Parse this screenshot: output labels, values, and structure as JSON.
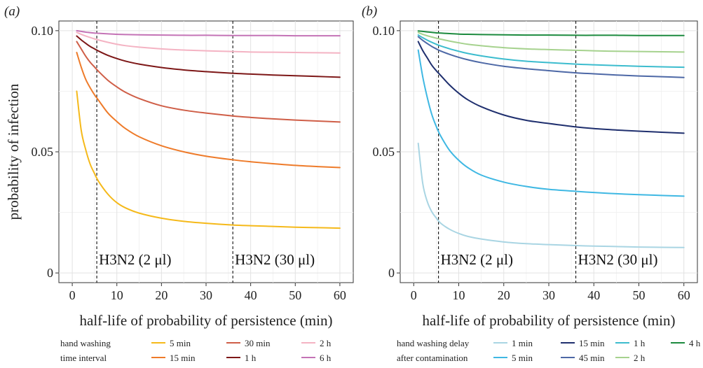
{
  "chart_data": [
    {
      "type": "line",
      "panel_label": "(a)",
      "xlabel": "half-life of probability of persistence (min)",
      "ylabel": "probability of infection",
      "xlim": [
        -3,
        63
      ],
      "ylim": [
        -0.004,
        0.104
      ],
      "xticks": [
        0,
        10,
        20,
        30,
        40,
        50,
        60
      ],
      "yticks": [
        0,
        0.05,
        0.1
      ],
      "ytick_labels": [
        "0",
        "0.05",
        "0.10"
      ],
      "grid": true,
      "vlines": [
        {
          "x": 5.5,
          "label": "H3N2 (2 μl)"
        },
        {
          "x": 36,
          "label": "H3N2 (30 μl)"
        }
      ],
      "legend": {
        "placement": "bottom",
        "title": [
          "hand washing",
          "time interval"
        ]
      },
      "series": [
        {
          "name": "5 min",
          "color": "#F5B91A",
          "x": [
            1,
            2,
            3,
            4,
            5,
            6,
            8,
            10,
            12,
            15,
            20,
            25,
            30,
            36,
            40,
            45,
            50,
            55,
            60
          ],
          "y": [
            0.075,
            0.059,
            0.051,
            0.045,
            0.041,
            0.0375,
            0.0325,
            0.029,
            0.0268,
            0.0247,
            0.0226,
            0.0213,
            0.0205,
            0.0198,
            0.0195,
            0.0192,
            0.0189,
            0.0187,
            0.0185
          ]
        },
        {
          "name": "15 min",
          "color": "#EE7B2A",
          "x": [
            1,
            2,
            3,
            4,
            5,
            6,
            8,
            10,
            12,
            15,
            20,
            25,
            30,
            36,
            40,
            45,
            50,
            55,
            60
          ],
          "y": [
            0.091,
            0.085,
            0.08,
            0.0765,
            0.0735,
            0.071,
            0.066,
            0.0625,
            0.0595,
            0.0562,
            0.0525,
            0.05,
            0.0482,
            0.0467,
            0.0459,
            0.0451,
            0.0444,
            0.0439,
            0.0435
          ]
        },
        {
          "name": "30 min",
          "color": "#CF5E47",
          "x": [
            1,
            2,
            3,
            4,
            5,
            6,
            8,
            10,
            12,
            15,
            20,
            25,
            30,
            36,
            40,
            45,
            50,
            55,
            60
          ],
          "y": [
            0.0955,
            0.0925,
            0.0895,
            0.087,
            0.085,
            0.083,
            0.0795,
            0.0768,
            0.0745,
            0.072,
            0.069,
            0.0672,
            0.066,
            0.0648,
            0.0642,
            0.0636,
            0.0631,
            0.0627,
            0.0623
          ]
        },
        {
          "name": "1 h",
          "color": "#7D1717",
          "x": [
            1,
            2,
            3,
            4,
            5,
            6,
            8,
            10,
            12,
            15,
            20,
            25,
            30,
            36,
            40,
            45,
            50,
            55,
            60
          ],
          "y": [
            0.0978,
            0.0962,
            0.0948,
            0.0935,
            0.0925,
            0.0915,
            0.0898,
            0.0885,
            0.0874,
            0.0862,
            0.0848,
            0.0838,
            0.0831,
            0.0824,
            0.0821,
            0.0817,
            0.0814,
            0.0811,
            0.0808
          ]
        },
        {
          "name": "2 h",
          "color": "#F4B3C3",
          "x": [
            1,
            2,
            3,
            4,
            5,
            6,
            8,
            10,
            12,
            15,
            20,
            25,
            30,
            36,
            40,
            45,
            50,
            55,
            60
          ],
          "y": [
            0.0993,
            0.0985,
            0.0978,
            0.0972,
            0.0966,
            0.0961,
            0.0952,
            0.0944,
            0.0938,
            0.0932,
            0.0925,
            0.092,
            0.0917,
            0.0914,
            0.0912,
            0.0911,
            0.091,
            0.0909,
            0.0908
          ]
        },
        {
          "name": "6 h",
          "color": "#C473B6",
          "x": [
            1,
            2,
            3,
            4,
            5,
            6,
            8,
            10,
            12,
            15,
            20,
            25,
            30,
            36,
            40,
            45,
            50,
            55,
            60
          ],
          "y": [
            0.1,
            0.0997,
            0.0994,
            0.0992,
            0.099,
            0.0989,
            0.0987,
            0.0985,
            0.0984,
            0.0983,
            0.0982,
            0.0981,
            0.0981,
            0.098,
            0.098,
            0.098,
            0.0979,
            0.0979,
            0.0979
          ]
        }
      ]
    },
    {
      "type": "line",
      "panel_label": "(b)",
      "xlabel": "half-life of probability of persistence (min)",
      "ylabel": "",
      "xlim": [
        -3,
        63
      ],
      "ylim": [
        -0.004,
        0.104
      ],
      "xticks": [
        0,
        10,
        20,
        30,
        40,
        50,
        60
      ],
      "yticks": [
        0,
        0.05,
        0.1
      ],
      "ytick_labels": [
        "0",
        "0.05",
        "0.10"
      ],
      "grid": true,
      "vlines": [
        {
          "x": 5.5,
          "label": "H3N2 (2 μl)"
        },
        {
          "x": 36,
          "label": "H3N2 (30 μl)"
        }
      ],
      "legend": {
        "placement": "bottom",
        "title": [
          "hand washing delay",
          "after contamination"
        ]
      },
      "series": [
        {
          "name": "1 min",
          "color": "#A9D5E3",
          "x": [
            1,
            2,
            3,
            4,
            5,
            6,
            8,
            10,
            12,
            15,
            20,
            25,
            30,
            36,
            40,
            45,
            50,
            55,
            60
          ],
          "y": [
            0.0535,
            0.037,
            0.0295,
            0.0253,
            0.0227,
            0.0205,
            0.018,
            0.0163,
            0.0151,
            0.014,
            0.0128,
            0.0121,
            0.0117,
            0.0113,
            0.0111,
            0.0109,
            0.0107,
            0.0106,
            0.0105
          ]
        },
        {
          "name": "5 min",
          "color": "#3FB8E3",
          "x": [
            1,
            2,
            3,
            4,
            5,
            6,
            8,
            10,
            12,
            15,
            20,
            25,
            30,
            36,
            40,
            45,
            50,
            55,
            60
          ],
          "y": [
            0.092,
            0.081,
            0.0725,
            0.0655,
            0.0605,
            0.0565,
            0.0505,
            0.0465,
            0.0435,
            0.0404,
            0.0375,
            0.0357,
            0.0345,
            0.0337,
            0.0332,
            0.0327,
            0.0323,
            0.032,
            0.0317
          ]
        },
        {
          "name": "15 min",
          "color": "#1F2F6E",
          "x": [
            1,
            2,
            3,
            4,
            5,
            6,
            8,
            10,
            12,
            15,
            20,
            25,
            30,
            36,
            40,
            45,
            50,
            55,
            60
          ],
          "y": [
            0.0955,
            0.0918,
            0.0888,
            0.0858,
            0.0835,
            0.0815,
            0.0775,
            0.0742,
            0.0715,
            0.0686,
            0.0652,
            0.063,
            0.0617,
            0.0603,
            0.0596,
            0.059,
            0.0585,
            0.0581,
            0.0577
          ]
        },
        {
          "name": "45 min",
          "color": "#4D68A6",
          "x": [
            1,
            2,
            3,
            4,
            5,
            6,
            8,
            10,
            12,
            15,
            20,
            25,
            30,
            36,
            40,
            45,
            50,
            55,
            60
          ],
          "y": [
            0.0975,
            0.096,
            0.0947,
            0.0935,
            0.0925,
            0.0916,
            0.0902,
            0.089,
            0.088,
            0.0868,
            0.0853,
            0.0843,
            0.0835,
            0.0826,
            0.0822,
            0.0817,
            0.0813,
            0.081,
            0.0807
          ]
        },
        {
          "name": "1 h",
          "color": "#3CBCCE",
          "x": [
            1,
            2,
            3,
            4,
            5,
            6,
            8,
            10,
            12,
            15,
            20,
            25,
            30,
            36,
            40,
            45,
            50,
            55,
            60
          ],
          "y": [
            0.0982,
            0.0971,
            0.0961,
            0.0952,
            0.0944,
            0.0937,
            0.0925,
            0.0915,
            0.0906,
            0.0896,
            0.0883,
            0.0874,
            0.0868,
            0.0862,
            0.0859,
            0.0856,
            0.0853,
            0.0851,
            0.0849
          ]
        },
        {
          "name": "2 h",
          "color": "#A6D28E",
          "x": [
            1,
            2,
            3,
            4,
            5,
            6,
            8,
            10,
            12,
            15,
            20,
            25,
            30,
            36,
            40,
            45,
            50,
            55,
            60
          ],
          "y": [
            0.0992,
            0.0985,
            0.0979,
            0.0974,
            0.0969,
            0.0965,
            0.0957,
            0.095,
            0.0944,
            0.0938,
            0.093,
            0.0925,
            0.0922,
            0.0919,
            0.0917,
            0.0915,
            0.0914,
            0.0913,
            0.0912
          ]
        },
        {
          "name": "4 h",
          "color": "#1C8A3E",
          "x": [
            1,
            2,
            3,
            4,
            5,
            6,
            8,
            10,
            12,
            15,
            20,
            25,
            30,
            36,
            40,
            45,
            50,
            55,
            60
          ],
          "y": [
            0.0999,
            0.0997,
            0.0995,
            0.0993,
            0.0991,
            0.099,
            0.0988,
            0.0986,
            0.0985,
            0.0984,
            0.0983,
            0.0982,
            0.0982,
            0.0981,
            0.0981,
            0.0981,
            0.098,
            0.098,
            0.098
          ]
        }
      ]
    }
  ]
}
